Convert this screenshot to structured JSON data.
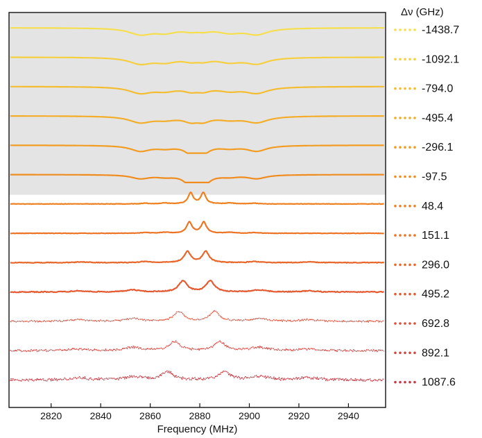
{
  "chart_data": {
    "type": "line",
    "xlabel": "Frequency (MHz)",
    "ylabel": "",
    "xlim": [
      2803,
      2955
    ],
    "x_ticks": [
      2820,
      2840,
      2860,
      2880,
      2900,
      2920,
      2940
    ],
    "grid": false,
    "legend": {
      "title": "Δν (GHz)",
      "placement": "right",
      "style": "dotted"
    },
    "shaded_region": {
      "color": "#e4e4e4",
      "covers_series": [
        "-1438.7",
        "-1092.1",
        "-794.0",
        "-495.4",
        "-296.1",
        "-97.5"
      ]
    },
    "series": [
      {
        "name": "-1438.7",
        "color": "#f6df4c",
        "kind": "dip",
        "central": [
          2876.3,
          2881.4
        ],
        "central_amp": 0.35,
        "side": [
          [
            2856,
            2903
          ],
          [
            2866,
            2892
          ]
        ],
        "side_amp": [
          1.0,
          0.7
        ],
        "width": 3.5,
        "noise": 0.0
      },
      {
        "name": "-1092.1",
        "color": "#f5cf3e",
        "kind": "dip",
        "central": [
          2876.3,
          2881.4
        ],
        "central_amp": 0.45,
        "side": [
          [
            2856,
            2903
          ],
          [
            2866,
            2892
          ]
        ],
        "side_amp": [
          1.0,
          0.7
        ],
        "width": 3.5,
        "noise": 0.0
      },
      {
        "name": "-794.0",
        "color": "#f4bd30",
        "kind": "dip",
        "central": [
          2876.3,
          2881.4
        ],
        "central_amp": 0.55,
        "side": [
          [
            2856,
            2903
          ],
          [
            2866,
            2892
          ]
        ],
        "side_amp": [
          1.0,
          0.6
        ],
        "width": 3.5,
        "noise": 0.0
      },
      {
        "name": "-495.4",
        "color": "#f3ad28",
        "kind": "dip",
        "central": [
          2876.3,
          2881.4
        ],
        "central_amp": 0.7,
        "side": [
          [
            2856,
            2903
          ],
          [
            2866,
            2892
          ]
        ],
        "side_amp": [
          1.0,
          0.5
        ],
        "width": 3.5,
        "noise": 0.0
      },
      {
        "name": "-296.1",
        "color": "#f29c22",
        "kind": "dip",
        "central": [
          2876.3,
          2881.4
        ],
        "central_amp": 1.1,
        "side": [
          [
            2856,
            2903
          ],
          [
            2866,
            2892
          ]
        ],
        "side_amp": [
          0.9,
          0.4
        ],
        "width": 3.0,
        "noise": 0.0
      },
      {
        "name": "-97.5",
        "color": "#f08c1e",
        "kind": "dip",
        "central": [
          2876.3,
          2881.4
        ],
        "central_amp": 1.6,
        "side": [
          [
            2856,
            2903
          ],
          [
            2866,
            2892
          ]
        ],
        "side_amp": [
          0.6,
          0.3
        ],
        "width": 2.8,
        "noise": 0.0
      },
      {
        "name": "48.4",
        "color": "#ee8020",
        "kind": "peak",
        "central": [
          2876.3,
          2881.4
        ],
        "central_amp": 1.0,
        "side": [
          [
            2866,
            2892
          ],
          [
            2858,
            2902
          ]
        ],
        "side_amp": [
          0.08,
          0.06
        ],
        "width": 1.2,
        "noise": 0.02
      },
      {
        "name": "151.1",
        "color": "#ec7424",
        "kind": "peak",
        "central": [
          2875.8,
          2881.6
        ],
        "central_amp": 1.0,
        "side": [
          [
            2866,
            2892
          ],
          [
            2858,
            2902
          ]
        ],
        "side_amp": [
          0.08,
          0.06
        ],
        "width": 1.3,
        "noise": 0.02
      },
      {
        "name": "296.0",
        "color": "#e96629",
        "kind": "peak",
        "central": [
          2875.0,
          2882.4
        ],
        "central_amp": 1.0,
        "side": [
          [
            2858,
            2902
          ],
          [
            2832,
            2924
          ]
        ],
        "side_amp": [
          0.1,
          0.07
        ],
        "width": 1.6,
        "noise": 0.03
      },
      {
        "name": "495.2",
        "color": "#e55a30",
        "kind": "peak",
        "central": [
          2873.2,
          2884.2
        ],
        "central_amp": 1.0,
        "side": [
          [
            2853,
            2904
          ],
          [
            2831,
            2924
          ]
        ],
        "side_amp": [
          0.18,
          0.1
        ],
        "width": 2.0,
        "noise": 0.04
      },
      {
        "name": "692.8",
        "color": "#dd4e38",
        "kind": "peak",
        "central": [
          2871.5,
          2886.0
        ],
        "central_amp": 0.9,
        "side": [
          [
            2853,
            2904
          ],
          [
            2831,
            2924
          ]
        ],
        "side_amp": [
          0.25,
          0.15
        ],
        "width": 2.3,
        "noise": 0.07
      },
      {
        "name": "892.1",
        "color": "#d3443f",
        "kind": "peak",
        "central": [
          2869.8,
          2888.0
        ],
        "central_amp": 0.8,
        "side": [
          [
            2853,
            2904
          ],
          [
            2831,
            2924
          ]
        ],
        "side_amp": [
          0.3,
          0.15
        ],
        "width": 2.6,
        "noise": 0.09
      },
      {
        "name": "1087.6",
        "color": "#c63c46",
        "kind": "peak",
        "central": [
          2867.0,
          2890.0
        ],
        "central_amp": 0.75,
        "side": [
          [
            2853,
            2904
          ],
          [
            2831,
            2924
          ]
        ],
        "side_amp": [
          0.3,
          0.2
        ],
        "width": 2.8,
        "noise": 0.12
      }
    ]
  }
}
